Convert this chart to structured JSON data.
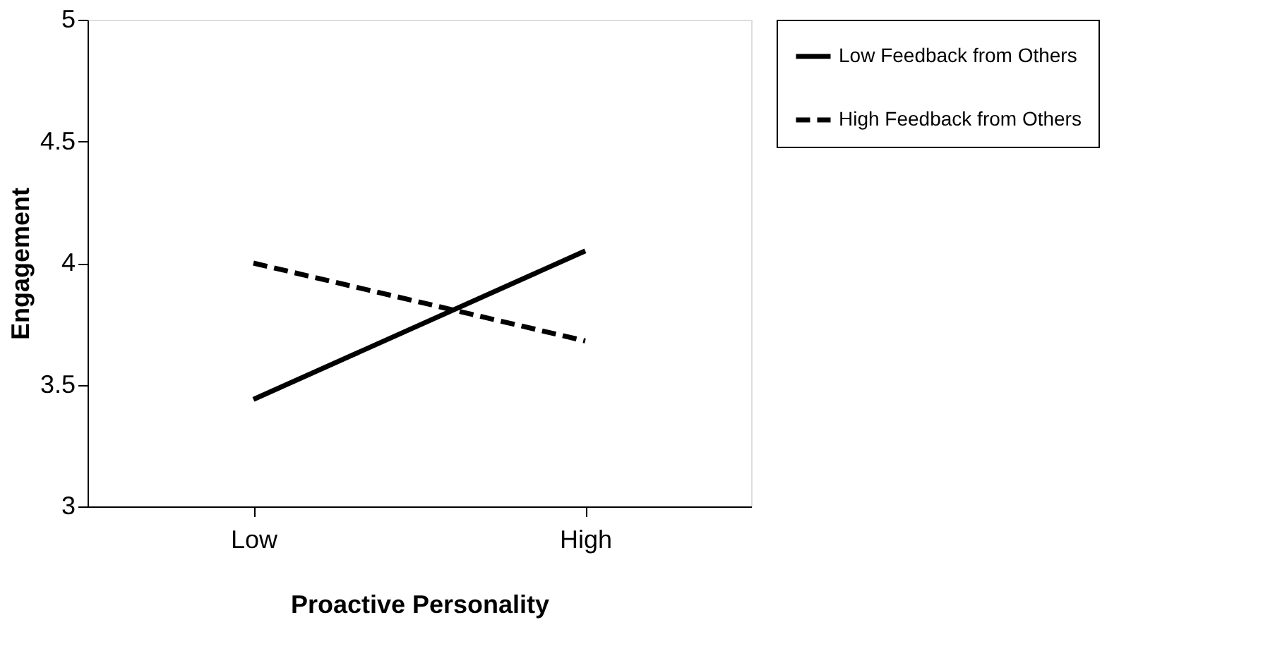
{
  "chart_data": {
    "type": "line",
    "xlabel": "Proactive Personality",
    "ylabel": "Engagement",
    "categories": [
      "Low",
      "High"
    ],
    "series": [
      {
        "name": "Low Feedback from Others",
        "color": "#000000",
        "line_style": "solid",
        "values": [
          3.44,
          4.05
        ]
      },
      {
        "name": "High Feedback from Others",
        "color": "#000000",
        "line_style": "dashed",
        "values": [
          4.0,
          3.68
        ]
      }
    ],
    "ylim": [
      3,
      5
    ],
    "yticks": [
      3,
      3.5,
      4,
      4.5,
      5
    ],
    "grid": false,
    "legend": "right",
    "marker": "none"
  }
}
